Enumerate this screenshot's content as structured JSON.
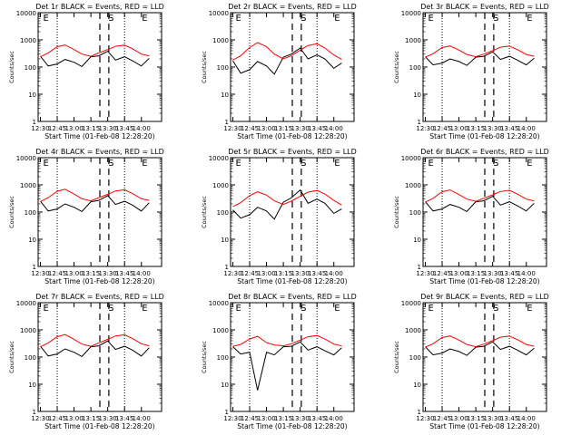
{
  "figure": {
    "x_ticks": [
      "12:30",
      "12:45",
      "13:00",
      "13:15",
      "13:30",
      "13:45",
      "14:00"
    ],
    "y_ticks": [
      "1",
      "10",
      "100",
      "1000",
      "10000"
    ],
    "ylabel": "Counts/sec",
    "xlabel": "Start Time (01-Feb-08 12:28:20)",
    "markers": [
      "E",
      "S",
      "E"
    ],
    "colors": {
      "events": "#000000",
      "lld": "#ff0000"
    }
  },
  "chart_data": [
    {
      "type": "line",
      "title": "Det 1r BLACK = Events, RED = LLD",
      "xlabel": "Start Time (01-Feb-08 12:28:20)",
      "ylabel": "Counts/sec",
      "yscale": "log",
      "ylim": [
        1,
        10000
      ],
      "x": [
        "12:30",
        "12:37",
        "12:45",
        "12:52",
        "13:00",
        "13:07",
        "13:15",
        "13:22",
        "13:30",
        "13:37",
        "13:45",
        "13:52",
        "14:00",
        "14:07"
      ],
      "series": [
        {
          "name": "RED = LLD",
          "color": "#ff0000",
          "values": [
            240,
            330,
            560,
            650,
            440,
            300,
            250,
            330,
            440,
            580,
            640,
            470,
            300,
            260
          ]
        },
        {
          "name": "BLACK = Events",
          "color": "#000000",
          "values": [
            250,
            110,
            130,
            190,
            150,
            105,
            240,
            260,
            380,
            180,
            240,
            170,
            110,
            210
          ]
        }
      ]
    },
    {
      "type": "line",
      "title": "Det 2r BLACK = Events, RED = LLD",
      "xlabel": "Start Time (01-Feb-08 12:28:20)",
      "ylabel": "Counts/sec",
      "yscale": "log",
      "ylim": [
        1,
        10000
      ],
      "x": [
        "12:30",
        "12:37",
        "12:45",
        "12:52",
        "13:00",
        "13:07",
        "13:15",
        "13:22",
        "13:30",
        "13:37",
        "13:45",
        "13:52",
        "14:00",
        "14:07"
      ],
      "series": [
        {
          "name": "RED = LLD",
          "color": "#ff0000",
          "values": [
            180,
            260,
            520,
            800,
            560,
            300,
            200,
            260,
            420,
            620,
            720,
            500,
            280,
            190
          ]
        },
        {
          "name": "BLACK = Events",
          "color": "#000000",
          "values": [
            170,
            60,
            80,
            160,
            110,
            55,
            230,
            300,
            500,
            200,
            280,
            200,
            90,
            140
          ]
        }
      ]
    },
    {
      "type": "line",
      "title": "Det 3r BLACK = Events, RED = LLD",
      "xlabel": "Start Time (01-Feb-08 12:28:20)",
      "ylabel": "Counts/sec",
      "yscale": "log",
      "ylim": [
        1,
        10000
      ],
      "x": [
        "12:30",
        "12:37",
        "12:45",
        "12:52",
        "13:00",
        "13:07",
        "13:15",
        "13:22",
        "13:30",
        "13:37",
        "13:45",
        "13:52",
        "14:00",
        "14:07"
      ],
      "series": [
        {
          "name": "RED = LLD",
          "color": "#ff0000",
          "values": [
            230,
            310,
            520,
            600,
            420,
            290,
            240,
            300,
            400,
            540,
            590,
            440,
            290,
            250
          ]
        },
        {
          "name": "BLACK = Events",
          "color": "#000000",
          "values": [
            240,
            120,
            140,
            200,
            160,
            115,
            230,
            250,
            360,
            190,
            250,
            180,
            120,
            210
          ]
        }
      ]
    },
    {
      "type": "line",
      "title": "Det 4r BLACK = Events, RED = LLD",
      "xlabel": "Start Time (01-Feb-08 12:28:20)",
      "ylabel": "Counts/sec",
      "yscale": "log",
      "ylim": [
        1,
        10000
      ],
      "x": [
        "12:30",
        "12:37",
        "12:45",
        "12:52",
        "13:00",
        "13:07",
        "13:15",
        "13:22",
        "13:30",
        "13:37",
        "13:45",
        "13:52",
        "14:00",
        "14:07"
      ],
      "series": [
        {
          "name": "RED = LLD",
          "color": "#ff0000",
          "values": [
            240,
            340,
            580,
            690,
            460,
            310,
            260,
            340,
            450,
            600,
            660,
            480,
            310,
            270
          ]
        },
        {
          "name": "BLACK = Events",
          "color": "#000000",
          "values": [
            250,
            110,
            130,
            200,
            150,
            105,
            240,
            270,
            400,
            190,
            250,
            180,
            110,
            220
          ]
        }
      ]
    },
    {
      "type": "line",
      "title": "Det 5r BLACK = Events, RED = LLD",
      "xlabel": "Start Time (01-Feb-08 12:28:20)",
      "ylabel": "Counts/sec",
      "yscale": "log",
      "ylim": [
        1,
        10000
      ],
      "x": [
        "12:30",
        "12:37",
        "12:45",
        "12:52",
        "13:00",
        "13:07",
        "13:15",
        "13:22",
        "13:30",
        "13:37",
        "13:45",
        "13:52",
        "14:00",
        "14:07"
      ],
      "series": [
        {
          "name": "RED = LLD",
          "color": "#ff0000",
          "values": [
            160,
            220,
            400,
            560,
            420,
            260,
            190,
            250,
            380,
            540,
            620,
            460,
            270,
            180
          ]
        },
        {
          "name": "BLACK = Events",
          "color": "#000000",
          "values": [
            120,
            60,
            80,
            150,
            110,
            55,
            230,
            330,
            650,
            210,
            300,
            210,
            90,
            130
          ]
        }
      ]
    },
    {
      "type": "line",
      "title": "Det 6r BLACK = Events, RED = LLD",
      "xlabel": "Start Time (01-Feb-08 12:28:20)",
      "ylabel": "Counts/sec",
      "yscale": "log",
      "ylim": [
        1,
        10000
      ],
      "x": [
        "12:30",
        "12:37",
        "12:45",
        "12:52",
        "13:00",
        "13:07",
        "13:15",
        "13:22",
        "13:30",
        "13:37",
        "13:45",
        "13:52",
        "14:00",
        "14:07"
      ],
      "series": [
        {
          "name": "RED = LLD",
          "color": "#ff0000",
          "values": [
            230,
            320,
            560,
            650,
            440,
            300,
            250,
            320,
            430,
            570,
            630,
            460,
            300,
            260
          ]
        },
        {
          "name": "BLACK = Events",
          "color": "#000000",
          "values": [
            240,
            110,
            130,
            190,
            150,
            105,
            240,
            260,
            380,
            180,
            240,
            170,
            110,
            210
          ]
        }
      ]
    },
    {
      "type": "line",
      "title": "Det 7r BLACK = Events, RED = LLD",
      "xlabel": "Start Time (01-Feb-08 12:28:20)",
      "ylabel": "Counts/sec",
      "yscale": "log",
      "ylim": [
        1,
        10000
      ],
      "x": [
        "12:30",
        "12:37",
        "12:45",
        "12:52",
        "13:00",
        "13:07",
        "13:15",
        "13:22",
        "13:30",
        "13:37",
        "13:45",
        "13:52",
        "14:00",
        "14:07"
      ],
      "series": [
        {
          "name": "RED = LLD",
          "color": "#ff0000",
          "values": [
            240,
            330,
            560,
            670,
            450,
            300,
            250,
            330,
            450,
            600,
            660,
            480,
            310,
            260
          ]
        },
        {
          "name": "BLACK = Events",
          "color": "#000000",
          "values": [
            250,
            110,
            130,
            200,
            150,
            105,
            240,
            260,
            390,
            190,
            250,
            180,
            110,
            220
          ]
        }
      ]
    },
    {
      "type": "line",
      "title": "Det 8r BLACK = Events, RED = LLD",
      "xlabel": "Start Time (01-Feb-08 12:28:20)",
      "ylabel": "Counts/sec",
      "yscale": "log",
      "ylim": [
        1,
        10000
      ],
      "x": [
        "12:30",
        "12:37",
        "12:45",
        "12:52",
        "13:00",
        "13:07",
        "13:15",
        "13:22",
        "13:30",
        "13:37",
        "13:45",
        "13:52",
        "14:00",
        "14:07"
      ],
      "series": [
        {
          "name": "RED = LLD",
          "color": "#ff0000",
          "values": [
            250,
            290,
            460,
            580,
            340,
            280,
            260,
            310,
            420,
            560,
            620,
            460,
            300,
            260
          ]
        },
        {
          "name": "BLACK = Events",
          "color": "#000000",
          "values": [
            240,
            130,
            150,
            6,
            150,
            120,
            240,
            250,
            360,
            180,
            240,
            170,
            120,
            220
          ]
        }
      ]
    },
    {
      "type": "line",
      "title": "Det 9r BLACK = Events, RED = LLD",
      "xlabel": "Start Time (01-Feb-08 12:28:20)",
      "ylabel": "Counts/sec",
      "yscale": "log",
      "ylim": [
        1,
        10000
      ],
      "x": [
        "12:30",
        "12:37",
        "12:45",
        "12:52",
        "13:00",
        "13:07",
        "13:15",
        "13:22",
        "13:30",
        "13:37",
        "13:45",
        "13:52",
        "14:00",
        "14:07"
      ],
      "series": [
        {
          "name": "RED = LLD",
          "color": "#ff0000",
          "values": [
            230,
            310,
            520,
            600,
            420,
            290,
            240,
            300,
            400,
            540,
            590,
            440,
            290,
            250
          ]
        },
        {
          "name": "BLACK = Events",
          "color": "#000000",
          "values": [
            240,
            120,
            140,
            200,
            160,
            115,
            230,
            250,
            360,
            190,
            250,
            180,
            120,
            210
          ]
        }
      ]
    }
  ]
}
